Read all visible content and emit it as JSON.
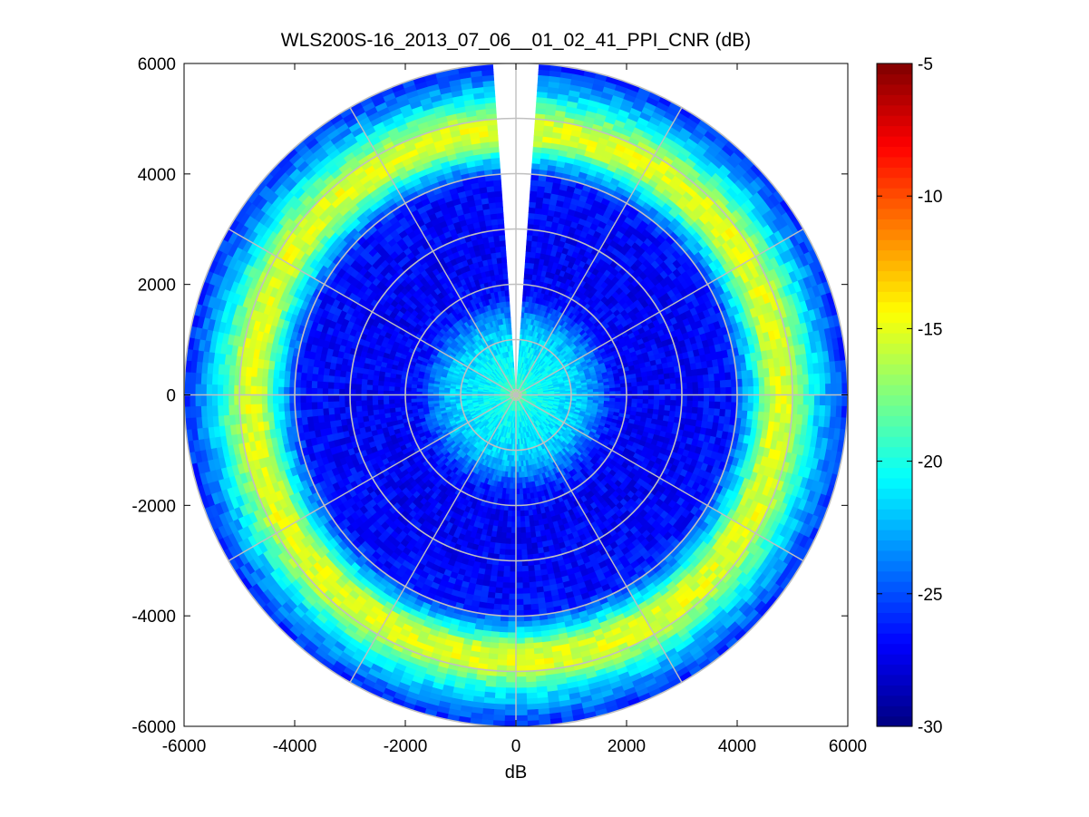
{
  "chart_data": {
    "type": "heatmap",
    "subtype": "polar-ppi-scan",
    "title": "WLS200S-16_2013_07_06__01_02_41_PPI_CNR (dB)",
    "xlabel": "dB",
    "ylabel": "",
    "xlim": [
      -6000,
      6000
    ],
    "ylim": [
      -6000,
      6000
    ],
    "x_ticks": [
      -6000,
      -4000,
      -2000,
      0,
      2000,
      4000,
      6000
    ],
    "y_ticks": [
      -6000,
      -4000,
      -2000,
      0,
      2000,
      4000,
      6000
    ],
    "x_tick_labels": [
      "-6000",
      "-4000",
      "-2000",
      "0",
      "2000",
      "4000",
      "6000"
    ],
    "y_tick_labels": [
      "6000",
      "4000",
      "2000",
      "0",
      "-2000",
      "-4000",
      "-6000"
    ],
    "polar_grid": {
      "rings": [
        1000,
        2000,
        3000,
        4000,
        5000,
        6000
      ],
      "spokes_deg": [
        0,
        30,
        60,
        90,
        120,
        150,
        180,
        210,
        240,
        270,
        300,
        330
      ],
      "color": "#c0c0c0"
    },
    "max_range": 6000,
    "missing_sector_deg": [
      -4,
      4
    ],
    "cnr_profile": {
      "range_m": [
        0,
        150,
        400,
        800,
        1200,
        1500,
        1800,
        2200,
        3000,
        3900,
        4300,
        4600,
        4900,
        5200,
        5500,
        5800,
        6000
      ],
      "cnr_db": [
        -16,
        -19,
        -20.5,
        -21,
        -22,
        -24,
        -26.5,
        -27,
        -27,
        -26.5,
        -21,
        -15.5,
        -15,
        -18.5,
        -22,
        -24.5,
        -26
      ]
    },
    "colorbar": {
      "colormap": "jet",
      "clim": [
        -30,
        -5
      ],
      "ticks": [
        -5,
        -10,
        -15,
        -20,
        -25,
        -30
      ],
      "tick_labels": [
        "-5",
        "-10",
        "-15",
        "-20",
        "-25",
        "-30"
      ]
    },
    "grid": false,
    "legend": "none"
  }
}
